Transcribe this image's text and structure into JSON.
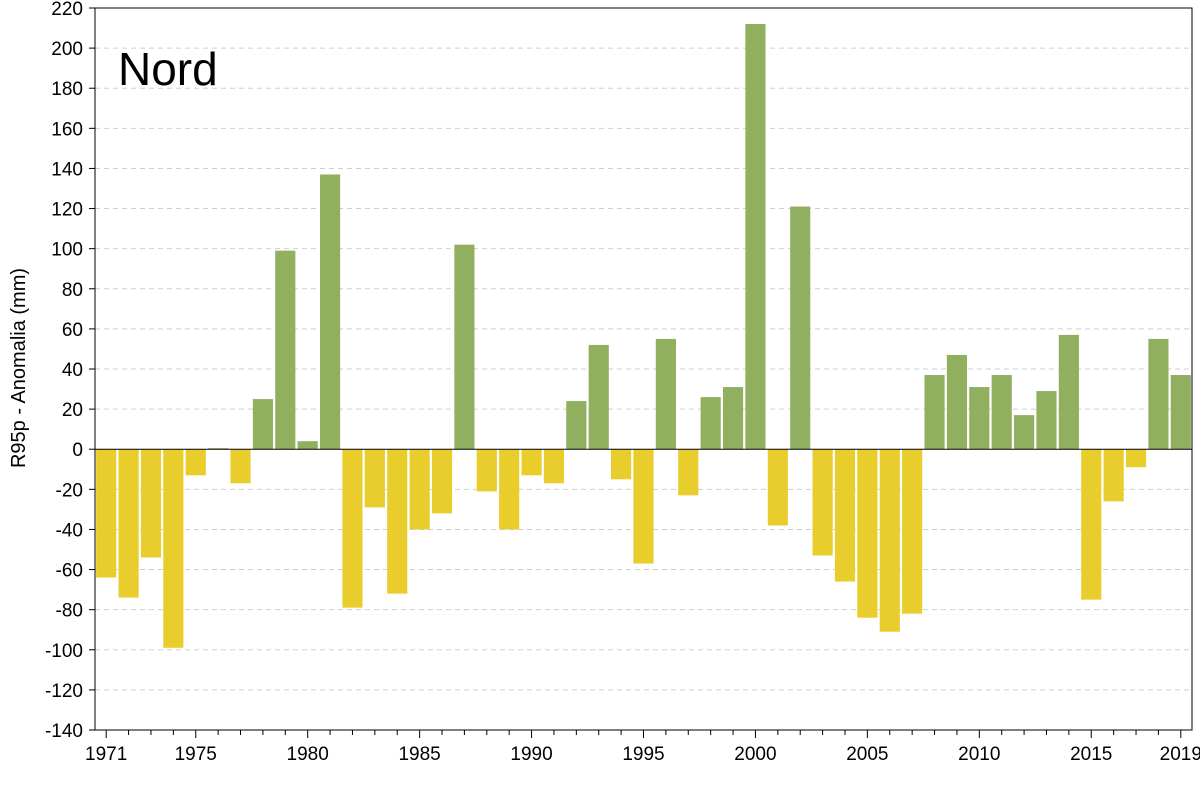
{
  "chart_data": {
    "type": "bar",
    "title": "Nord",
    "xlabel": "",
    "ylabel": "R95p - Anomalia (mm)",
    "ylim": [
      -140,
      220
    ],
    "ytick_step": 20,
    "grid": "horizontal dashed",
    "xtick_labels": [
      "1971",
      "1975",
      "1980",
      "1985",
      "1990",
      "1995",
      "2000",
      "2005",
      "2010",
      "2015",
      "2019"
    ],
    "categories": [
      1971,
      1972,
      1973,
      1974,
      1975,
      1976,
      1977,
      1978,
      1979,
      1980,
      1981,
      1982,
      1983,
      1984,
      1985,
      1986,
      1987,
      1988,
      1989,
      1990,
      1991,
      1992,
      1993,
      1994,
      1995,
      1996,
      1997,
      1998,
      1999,
      2000,
      2001,
      2002,
      2003,
      2004,
      2005,
      2006,
      2007,
      2008,
      2009,
      2010,
      2011,
      2012,
      2013,
      2014,
      2015,
      2016,
      2017,
      2018,
      2019
    ],
    "values": [
      -64,
      -74,
      -54,
      -99,
      -13,
      0.5,
      -17,
      25,
      99,
      4,
      137,
      -79,
      -29,
      -72,
      -40,
      -32,
      102,
      -21,
      -40,
      -13,
      -17,
      24,
      52,
      -15,
      -57,
      55,
      -23,
      26,
      31,
      212,
      -38,
      121,
      -53,
      -66,
      -84,
      -91,
      -82,
      37,
      47,
      31,
      37,
      17,
      29,
      57,
      -75,
      -26,
      -9,
      55,
      37
    ],
    "colors": {
      "positive": "#90b060",
      "negative": "#e8cd2c"
    }
  }
}
